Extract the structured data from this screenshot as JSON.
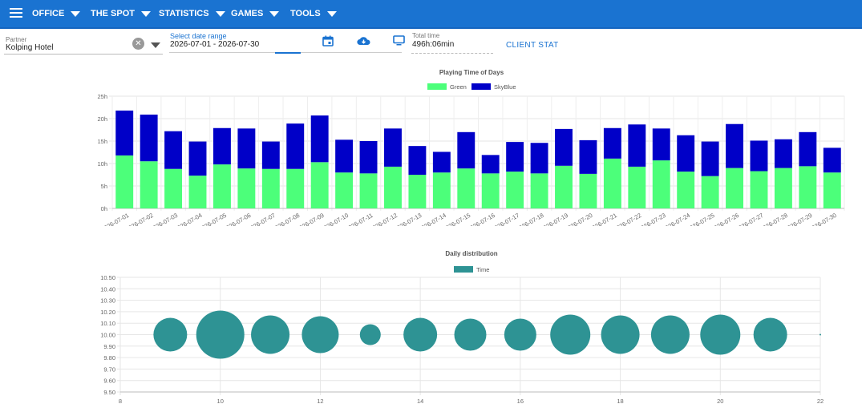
{
  "nav": {
    "items": [
      {
        "label": "OFFICE"
      },
      {
        "label": "THE SPOT"
      },
      {
        "label": "STATISTICS"
      },
      {
        "label": "GAMES"
      },
      {
        "label": "TOOLS"
      }
    ]
  },
  "filters": {
    "partner_label": "Partner",
    "partner_value": "Kolping Hotel",
    "date_label": "Select date range",
    "date_value": "2026-07-01 - 2026-07-30",
    "total_label": "Total time",
    "total_value": "496h:06min",
    "client_stat_label": "CLIENT STAT"
  },
  "colors": {
    "topbar": "#1a73d1",
    "green": "#4cff7a",
    "skyblue": "#0000c8",
    "bubble": "#2e9394",
    "link": "#1a73d1"
  },
  "icons": {
    "menu": "menu-icon",
    "calendar": "calendar-icon",
    "download": "cloud-download-icon",
    "screen": "monitor-icon",
    "clear": "clear-icon"
  },
  "chart_data": [
    {
      "type": "bar",
      "stacked": true,
      "title": "Playing Time of Days",
      "legend_position": "top",
      "categories": [
        "2026-07-01",
        "2026-07-02",
        "2026-07-03",
        "2026-07-04",
        "2026-07-05",
        "2026-07-06",
        "2026-07-07",
        "2026-07-08",
        "2026-07-09",
        "2026-07-10",
        "2026-07-11",
        "2026-07-12",
        "2026-07-13",
        "2026-07-14",
        "2026-07-15",
        "2026-07-16",
        "2026-07-17",
        "2026-07-18",
        "2026-07-19",
        "2026-07-20",
        "2026-07-21",
        "2026-07-22",
        "2026-07-23",
        "2026-07-24",
        "2026-07-25",
        "2026-07-26",
        "2026-07-27",
        "2026-07-28",
        "2026-07-29",
        "2026-07-30"
      ],
      "series": [
        {
          "name": "Green",
          "values": [
            11.8,
            10.5,
            8.8,
            7.3,
            9.8,
            8.9,
            8.8,
            8.8,
            10.3,
            8,
            7.8,
            9.3,
            7.5,
            8,
            8.9,
            7.8,
            8.2,
            7.8,
            9.5,
            7.7,
            11.1,
            9.3,
            10.7,
            8.2,
            7.2,
            9,
            8.3,
            9,
            9.4,
            8
          ]
        },
        {
          "name": "SkyBlue",
          "values": [
            10,
            10.4,
            8.4,
            7.6,
            8.1,
            8.9,
            6.1,
            10.1,
            10.4,
            7.3,
            7.2,
            8.5,
            6.4,
            4.6,
            8.1,
            4.1,
            6.6,
            6.8,
            8.2,
            7.5,
            6.8,
            9.4,
            7.1,
            8.1,
            7.7,
            9.8,
            6.8,
            6.4,
            7.6,
            5.5
          ]
        }
      ],
      "yticks": [
        "0h",
        "5h",
        "10h",
        "15h",
        "20h",
        "25h"
      ],
      "ylim": [
        0,
        25
      ],
      "grid": true
    },
    {
      "type": "scatter",
      "bubble": true,
      "title": "Daily distribution",
      "legend_position": "top",
      "series": [
        {
          "name": "Time",
          "points": [
            {
              "x": 9,
              "y": 10.0,
              "r": 21
            },
            {
              "x": 10,
              "y": 10.0,
              "r": 30
            },
            {
              "x": 11,
              "y": 10.0,
              "r": 24
            },
            {
              "x": 12,
              "y": 10.0,
              "r": 23
            },
            {
              "x": 13,
              "y": 10.0,
              "r": 13
            },
            {
              "x": 14,
              "y": 10.0,
              "r": 21
            },
            {
              "x": 15,
              "y": 10.0,
              "r": 20
            },
            {
              "x": 16,
              "y": 10.0,
              "r": 20
            },
            {
              "x": 17,
              "y": 10.0,
              "r": 25
            },
            {
              "x": 18,
              "y": 10.0,
              "r": 24
            },
            {
              "x": 19,
              "y": 10.0,
              "r": 24
            },
            {
              "x": 20,
              "y": 10.0,
              "r": 25
            },
            {
              "x": 21,
              "y": 10.0,
              "r": 21
            },
            {
              "x": 22,
              "y": 10.0,
              "r": 1
            }
          ]
        }
      ],
      "xticks": [
        "8",
        "10",
        "12",
        "14",
        "16",
        "18",
        "20",
        "22"
      ],
      "yticks": [
        "9.50",
        "9.60",
        "9.70",
        "9.80",
        "9.90",
        "10.00",
        "10.10",
        "10.20",
        "10.30",
        "10.40",
        "10.50"
      ],
      "xlim": [
        8,
        22
      ],
      "ylim": [
        9.5,
        10.5
      ],
      "grid": true
    }
  ]
}
